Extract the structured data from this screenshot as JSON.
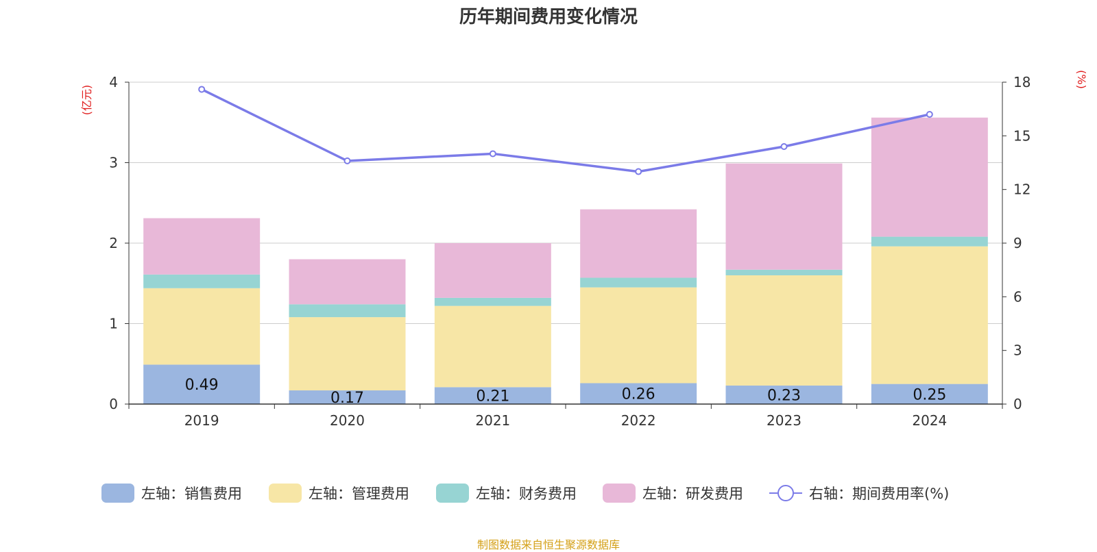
{
  "page": {
    "title": "历年期间费用变化情况",
    "source": "制图数据来自恒生聚源数据库"
  },
  "chart_data": {
    "type": "bar",
    "stacked": true,
    "title": "历年期间费用变化情况",
    "categories": [
      "2019",
      "2020",
      "2021",
      "2022",
      "2023",
      "2024"
    ],
    "y_left": {
      "unit": "(亿元)",
      "min": 0,
      "max": 4,
      "ticks": [
        "0",
        "1",
        "2",
        "3",
        "4"
      ]
    },
    "y_right": {
      "unit": "(%)",
      "min": 0,
      "max": 18,
      "ticks": [
        "0",
        "3",
        "6",
        "9",
        "12",
        "15",
        "18"
      ]
    },
    "grid": true,
    "legend_position": "bottom",
    "series": [
      {
        "name": "左轴：销售费用",
        "axis": "left",
        "color": "#9bb6e0",
        "values": [
          0.49,
          0.17,
          0.21,
          0.26,
          0.23,
          0.25
        ],
        "labels": [
          "0.49",
          "0.17",
          "0.21",
          "0.26",
          "0.23",
          "0.25"
        ]
      },
      {
        "name": "左轴：管理费用",
        "axis": "left",
        "color": "#f7e6a6",
        "values": [
          0.95,
          0.91,
          1.01,
          1.19,
          1.37,
          1.71
        ]
      },
      {
        "name": "左轴：财务费用",
        "axis": "left",
        "color": "#97d4d3",
        "values": [
          0.17,
          0.16,
          0.1,
          0.12,
          0.07,
          0.12
        ]
      },
      {
        "name": "左轴：研发费用",
        "axis": "left",
        "color": "#e8b8d8",
        "values": [
          0.7,
          0.56,
          0.68,
          0.85,
          1.32,
          1.48
        ]
      },
      {
        "name": "右轴：期间费用率(%)",
        "axis": "right",
        "type": "line",
        "color": "#7b7be8",
        "values": [
          17.6,
          13.6,
          14.0,
          13.0,
          14.4,
          16.2
        ]
      }
    ]
  }
}
